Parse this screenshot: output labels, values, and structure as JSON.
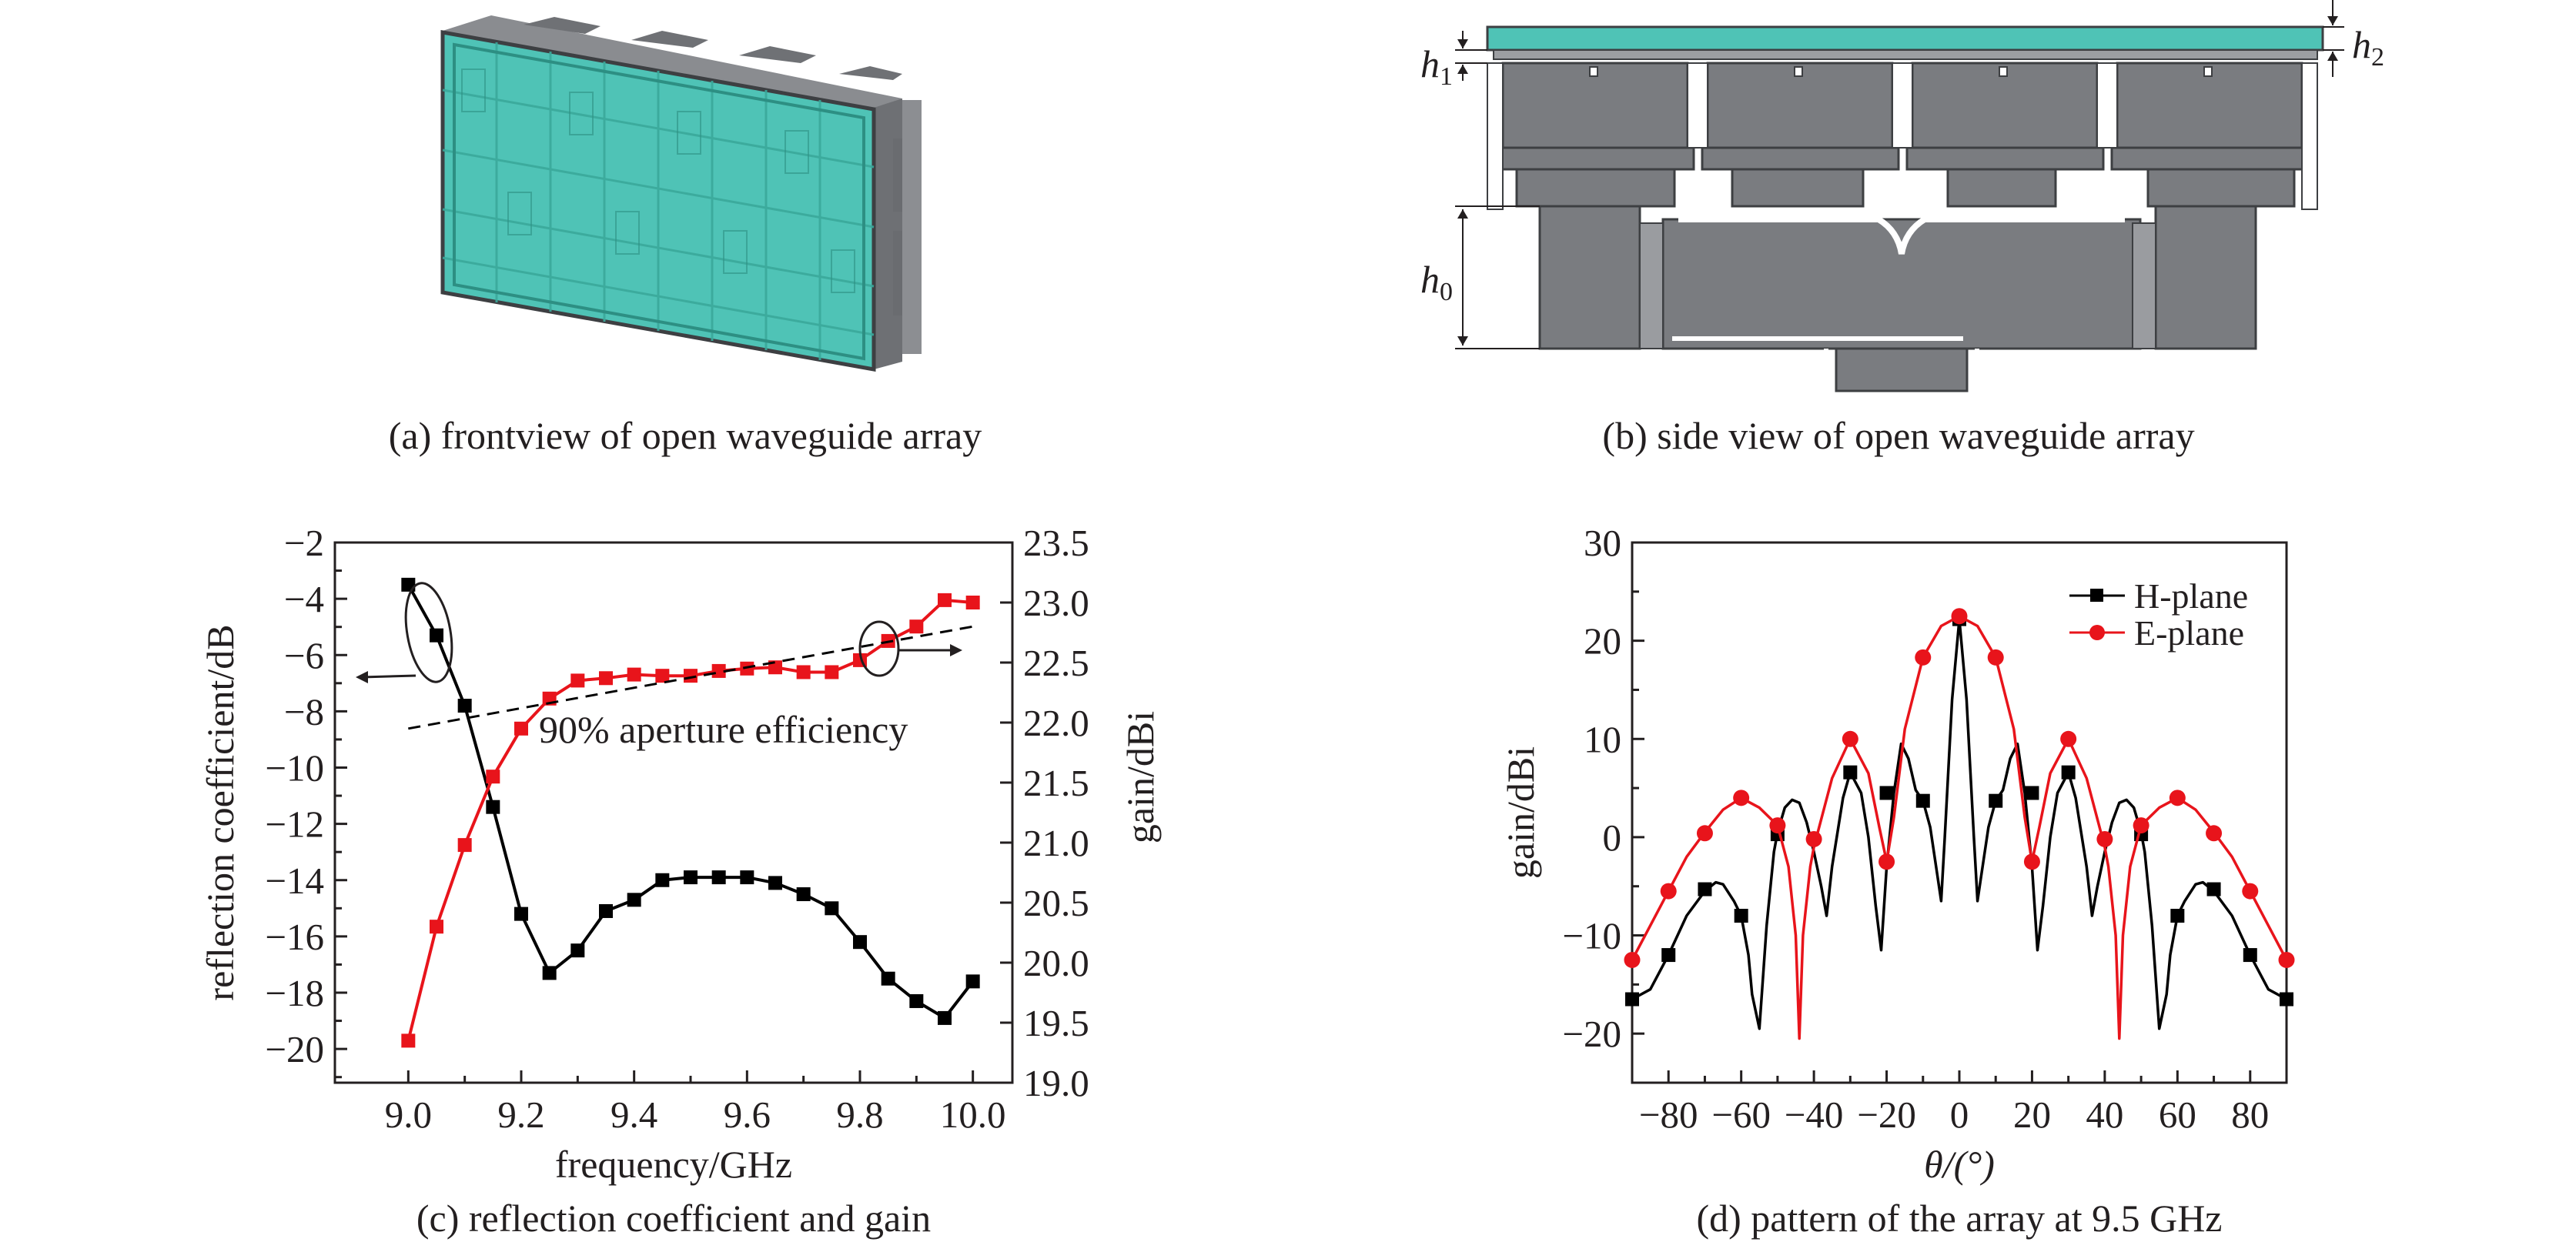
{
  "panels": {
    "a": {
      "caption": "(a) frontview of open waveguide array"
    },
    "b": {
      "caption": "(b) side view of open waveguide array",
      "labels": {
        "h0": "h",
        "h0_sub": "0",
        "h1": "h",
        "h1_sub": "1",
        "h2": "h",
        "h2_sub": "2"
      }
    },
    "c": {
      "caption": "(c) reflection coefficient and gain",
      "annotation": "90% aperture efficiency"
    },
    "d": {
      "caption": "(d) pattern of the array at 9.5 GHz"
    }
  },
  "colors": {
    "black_series": "#000000",
    "red_series": "#e8141b",
    "teal": "#4fc3b6",
    "metal": "#7a7c80"
  },
  "chart_data": [
    {
      "type": "line",
      "panel": "c",
      "xlabel": "frequency/GHz",
      "ylabel": "reflection coefficient/dB",
      "ylabel_right": "gain/dBi",
      "xlim": [
        8.87,
        10.07
      ],
      "ylim": [
        -21.2,
        -2
      ],
      "ylim_right": [
        19.0,
        23.5
      ],
      "xticks": [
        9.0,
        9.2,
        9.4,
        9.6,
        9.8,
        10.0
      ],
      "xtick_labels": [
        "9.0",
        "9.2",
        "9.4",
        "9.6",
        "9.8",
        "10.0"
      ],
      "yticks": [
        -2,
        -4,
        -6,
        -8,
        -10,
        -12,
        -14,
        -16,
        -18,
        -20
      ],
      "ytick_labels": [
        "−2",
        "−4",
        "−6",
        "−8",
        "−10",
        "−12",
        "−14",
        "−16",
        "−18",
        "−20"
      ],
      "yticks_right": [
        23.5,
        23.0,
        22.5,
        22.0,
        21.5,
        21.0,
        20.5,
        20.0,
        19.5,
        19.0
      ],
      "ytick_labels_right": [
        "23.5",
        "23.0",
        "22.5",
        "22.0",
        "21.5",
        "21.0",
        "20.5",
        "20.0",
        "19.5",
        "19.0"
      ],
      "x": [
        9.0,
        9.05,
        9.1,
        9.15,
        9.2,
        9.25,
        9.3,
        9.35,
        9.4,
        9.45,
        9.5,
        9.55,
        9.6,
        9.65,
        9.7,
        9.75,
        9.8,
        9.85,
        9.9,
        9.95,
        10.0
      ],
      "series": [
        {
          "axis": "left",
          "color": "#000000",
          "marker": "square",
          "values": [
            -3.5,
            -5.3,
            -7.8,
            -11.4,
            -15.2,
            -17.3,
            -16.5,
            -15.1,
            -14.7,
            -14.0,
            -13.9,
            -13.9,
            -13.9,
            -14.1,
            -14.5,
            -15.0,
            -16.2,
            -17.5,
            -18.3,
            -18.9,
            -17.6
          ]
        },
        {
          "axis": "right",
          "color": "#e8141b",
          "marker": "square",
          "values": [
            19.35,
            20.3,
            20.98,
            21.55,
            21.95,
            22.2,
            22.35,
            22.37,
            22.4,
            22.39,
            22.39,
            22.43,
            22.45,
            22.46,
            22.42,
            22.42,
            22.52,
            22.68,
            22.8,
            23.02,
            23.0
          ]
        },
        {
          "axis": "right",
          "style": "dashed",
          "color": "#000000",
          "x": [
            9.0,
            10.0
          ],
          "values": [
            21.95,
            22.8
          ]
        }
      ]
    },
    {
      "type": "line",
      "panel": "d",
      "xlabel": "θ/(°)",
      "ylabel": "gain/dBi",
      "xlim": [
        -90,
        90
      ],
      "ylim": [
        -25,
        30
      ],
      "xticks": [
        -80,
        -60,
        -40,
        -20,
        0,
        20,
        40,
        60,
        80
      ],
      "xtick_labels": [
        "−80",
        "−60",
        "−40",
        "−20",
        "0",
        "20",
        "40",
        "60",
        "80"
      ],
      "yticks": [
        30,
        20,
        10,
        0,
        -10,
        -20
      ],
      "ytick_labels": [
        "30",
        "20",
        "10",
        "0",
        "−10",
        "−20"
      ],
      "legend_position": "top-right",
      "series": [
        {
          "name": "H-plane",
          "color": "#000000",
          "marker": "square",
          "curve_x": [
            -90,
            -85,
            -80,
            -75,
            -70,
            -67,
            -65,
            -62,
            -60,
            -58,
            -57,
            -55,
            -53,
            -51,
            -50,
            -48,
            -46,
            -44,
            -42,
            -40,
            -38,
            -36.5,
            -35,
            -32,
            -30,
            -27,
            -25,
            -23,
            -21.5,
            -20,
            -18,
            -16,
            -14,
            -12,
            -10,
            -8,
            -6,
            -5,
            -4,
            -2,
            0,
            2,
            4,
            5,
            6,
            8,
            10,
            12,
            14,
            16,
            18,
            20,
            21.5,
            23,
            25,
            27,
            30,
            32,
            35,
            36.5,
            38,
            40,
            42,
            44,
            46,
            48,
            50,
            51,
            53,
            55,
            57,
            58,
            60,
            62,
            65,
            67,
            70,
            75,
            80,
            85,
            90
          ],
          "curve_y": [
            -16.5,
            -15.5,
            -12,
            -8,
            -5.5,
            -4.6,
            -4.8,
            -6.5,
            -8,
            -12,
            -16,
            -19.5,
            -9,
            -1.5,
            0.5,
            3,
            3.8,
            3.5,
            1.5,
            -1.5,
            -5,
            -8,
            -3,
            4,
            6.6,
            4.5,
            0,
            -7,
            -11.5,
            -3,
            4.5,
            9.5,
            8,
            4.8,
            3.7,
            1,
            -4,
            -6.5,
            0,
            14,
            22.2,
            14,
            0,
            -6.5,
            -4,
            1,
            3.7,
            4.8,
            8,
            9.5,
            4.5,
            -3,
            -11.5,
            -7,
            0,
            4.5,
            6.6,
            4,
            -3,
            -8,
            -5,
            -1.5,
            1.5,
            3.5,
            3.8,
            3,
            0.5,
            -1.5,
            -9,
            -19.5,
            -16,
            -12,
            -8,
            -6.5,
            -4.8,
            -4.6,
            -5.5,
            -8,
            -12,
            -15.5,
            -16.5
          ],
          "markers_x": [
            -90,
            -80,
            -70,
            -60,
            -50,
            -30,
            -20,
            -10,
            0,
            10,
            20,
            30,
            50,
            60,
            70,
            80,
            90
          ],
          "markers_y": [
            -16.5,
            -12,
            -5.3,
            -8,
            0.3,
            6.6,
            4.5,
            3.7,
            22.2,
            3.7,
            4.5,
            6.6,
            0.3,
            -8,
            -5.3,
            -12,
            -16.5
          ]
        },
        {
          "name": "E-plane",
          "color": "#e8141b",
          "marker": "circle",
          "curve_x": [
            -90,
            -85,
            -80,
            -75,
            -70,
            -65,
            -60,
            -55,
            -50,
            -47,
            -45,
            -44,
            -43,
            -41,
            -40,
            -35,
            -30,
            -25,
            -22,
            -20,
            -18,
            -15,
            -10,
            -5,
            0,
            5,
            10,
            15,
            18,
            20,
            22,
            25,
            30,
            35,
            40,
            41,
            43,
            44,
            45,
            47,
            50,
            55,
            60,
            65,
            70,
            75,
            80,
            85,
            90
          ],
          "curve_y": [
            -12.5,
            -9,
            -5.5,
            -2,
            0.5,
            2.8,
            4,
            3,
            1.2,
            -3,
            -10,
            -20.5,
            -10,
            -3,
            -1,
            6,
            10,
            6.5,
            1,
            -2.5,
            2,
            11,
            18.3,
            21.5,
            22.5,
            21.5,
            18.3,
            11,
            2,
            -2.5,
            1,
            6.5,
            10,
            6,
            -1,
            -3,
            -10,
            -20.5,
            -10,
            -3,
            1.2,
            3,
            4,
            2.8,
            0.5,
            -2,
            -5.5,
            -9,
            -12.5
          ],
          "markers_x": [
            -90,
            -80,
            -70,
            -60,
            -50,
            -40,
            -30,
            -20,
            -10,
            0,
            10,
            20,
            30,
            40,
            50,
            60,
            70,
            80,
            90
          ],
          "markers_y": [
            -12.5,
            -5.5,
            0.4,
            4,
            1.2,
            -0.2,
            10,
            -2.5,
            18.3,
            22.5,
            18.3,
            -2.5,
            10,
            -0.2,
            1.2,
            4,
            0.4,
            -5.5,
            -12.5
          ]
        }
      ]
    }
  ]
}
